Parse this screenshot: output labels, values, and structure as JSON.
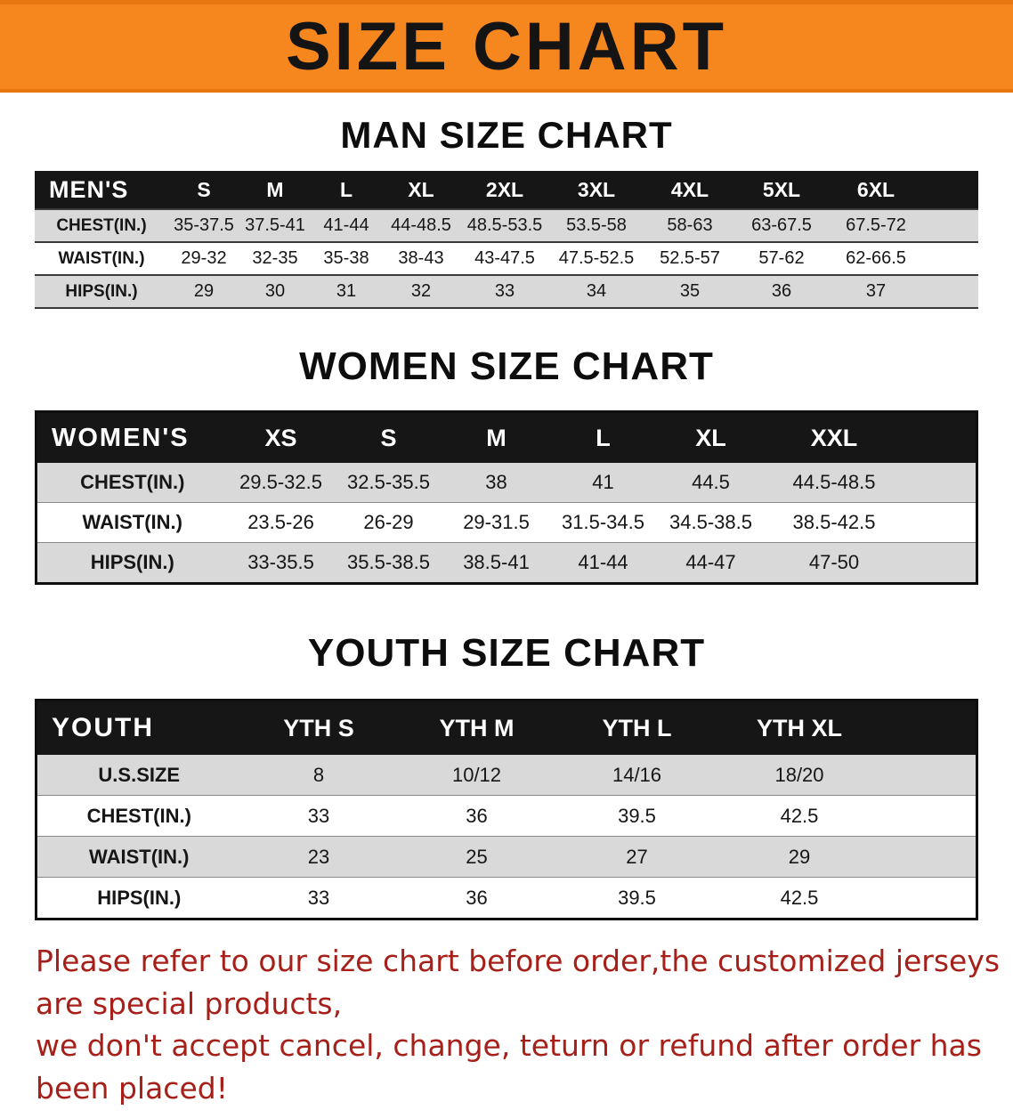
{
  "banner": {
    "title": "SIZE CHART"
  },
  "tables": {
    "men": {
      "heading": "MAN SIZE CHART",
      "header": [
        "MEN'S",
        "S",
        "M",
        "L",
        "XL",
        "2XL",
        "3XL",
        "4XL",
        "5XL",
        "6XL"
      ],
      "rows": [
        [
          "CHEST(IN.)",
          "35-37.5",
          "37.5-41",
          "41-44",
          "44-48.5",
          "48.5-53.5",
          "53.5-58",
          "58-63",
          "63-67.5",
          "67.5-72"
        ],
        [
          "WAIST(IN.)",
          "29-32",
          "32-35",
          "35-38",
          "38-43",
          "43-47.5",
          "47.5-52.5",
          "52.5-57",
          "57-62",
          "62-66.5"
        ],
        [
          "HIPS(IN.)",
          "29",
          "30",
          "31",
          "32",
          "33",
          "34",
          "35",
          "36",
          "37"
        ]
      ]
    },
    "women": {
      "heading": "WOMEN SIZE CHART",
      "header": [
        "WOMEN'S",
        "XS",
        "S",
        "M",
        "L",
        "XL",
        "XXL"
      ],
      "rows": [
        [
          "CHEST(IN.)",
          "29.5-32.5",
          "32.5-35.5",
          "38",
          "41",
          "44.5",
          "44.5-48.5"
        ],
        [
          "WAIST(IN.)",
          "23.5-26",
          "26-29",
          "29-31.5",
          "31.5-34.5",
          "34.5-38.5",
          "38.5-42.5"
        ],
        [
          "HIPS(IN.)",
          "33-35.5",
          "35.5-38.5",
          "38.5-41",
          "41-44",
          "44-47",
          "47-50"
        ]
      ]
    },
    "youth": {
      "heading": "YOUTH SIZE CHART",
      "header": [
        "YOUTH",
        "YTH S",
        "YTH M",
        "YTH L",
        "YTH XL"
      ],
      "rows": [
        [
          "U.S.SIZE",
          "8",
          "10/12",
          "14/16",
          "18/20"
        ],
        [
          "CHEST(IN.)",
          "33",
          "36",
          "39.5",
          "42.5"
        ],
        [
          "WAIST(IN.)",
          "23",
          "25",
          "27",
          "29"
        ],
        [
          "HIPS(IN.)",
          "33",
          "36",
          "39.5",
          "42.5"
        ]
      ]
    }
  },
  "footer": {
    "lines": [
      "Please refer to our size chart before order,the customized jerseys are special products,",
      "we don't accept cancel, change, teturn or refund after order has been placed!"
    ]
  },
  "colors": {
    "banner_bg": "#f6871e",
    "banner_text": "#141414",
    "table_header_bg": "#161616",
    "table_header_text": "#ffffff",
    "row_stripe": "#d9d9d9",
    "disclaimer_text": "#a62019"
  },
  "chart_data": [
    {
      "type": "table",
      "title": "MAN SIZE CHART",
      "columns": [
        "MEN'S",
        "S",
        "M",
        "L",
        "XL",
        "2XL",
        "3XL",
        "4XL",
        "5XL",
        "6XL"
      ],
      "rows": [
        [
          "CHEST(IN.)",
          "35-37.5",
          "37.5-41",
          "41-44",
          "44-48.5",
          "48.5-53.5",
          "53.5-58",
          "58-63",
          "63-67.5",
          "67.5-72"
        ],
        [
          "WAIST(IN.)",
          "29-32",
          "32-35",
          "35-38",
          "38-43",
          "43-47.5",
          "47.5-52.5",
          "52.5-57",
          "57-62",
          "62-66.5"
        ],
        [
          "HIPS(IN.)",
          "29",
          "30",
          "31",
          "32",
          "33",
          "34",
          "35",
          "36",
          "37"
        ]
      ]
    },
    {
      "type": "table",
      "title": "WOMEN SIZE CHART",
      "columns": [
        "WOMEN'S",
        "XS",
        "S",
        "M",
        "L",
        "XL",
        "XXL"
      ],
      "rows": [
        [
          "CHEST(IN.)",
          "29.5-32.5",
          "32.5-35.5",
          "38",
          "41",
          "44.5",
          "44.5-48.5"
        ],
        [
          "WAIST(IN.)",
          "23.5-26",
          "26-29",
          "29-31.5",
          "31.5-34.5",
          "34.5-38.5",
          "38.5-42.5"
        ],
        [
          "HIPS(IN.)",
          "33-35.5",
          "35.5-38.5",
          "38.5-41",
          "41-44",
          "44-47",
          "47-50"
        ]
      ]
    },
    {
      "type": "table",
      "title": "YOUTH SIZE CHART",
      "columns": [
        "YOUTH",
        "YTH S",
        "YTH M",
        "YTH L",
        "YTH XL"
      ],
      "rows": [
        [
          "U.S.SIZE",
          "8",
          "10/12",
          "14/16",
          "18/20"
        ],
        [
          "CHEST(IN.)",
          "33",
          "36",
          "39.5",
          "42.5"
        ],
        [
          "WAIST(IN.)",
          "23",
          "25",
          "27",
          "29"
        ],
        [
          "HIPS(IN.)",
          "33",
          "36",
          "39.5",
          "42.5"
        ]
      ]
    }
  ]
}
